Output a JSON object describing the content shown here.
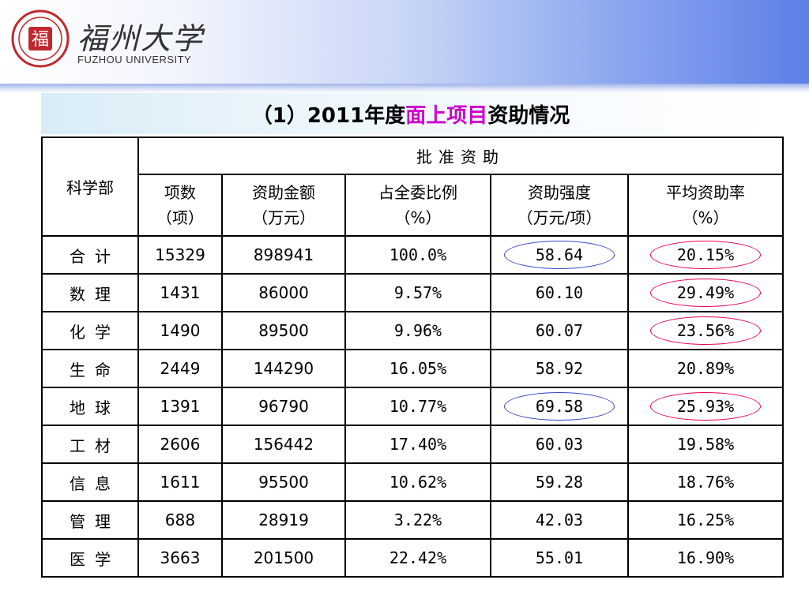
{
  "header": {
    "seal_char": "福",
    "logo_cn": "福州大学",
    "logo_en": "FUZHOU UNIVERSITY"
  },
  "title": {
    "prefix": "（1）2011年度",
    "highlight": "面上项目",
    "suffix": "资助情况"
  },
  "table": {
    "dept_header": "科学部",
    "group_header": "批准资助",
    "columns": [
      "项数（项）",
      "资助金额（万元）",
      "占全委比例（%）",
      "资助强度（万元/项）",
      "平均资助率（%）"
    ],
    "columns_line1": [
      "项数",
      "资助金额",
      "占全委比例",
      "资助强度",
      "平均资助率"
    ],
    "columns_line2": [
      "（项）",
      "（万元）",
      "（%）",
      "（万元/项）",
      "（%）"
    ],
    "rows": [
      {
        "dept": "合计",
        "count": "15329",
        "amount": "898941",
        "ratio": "100.0%",
        "intensity": "58.64",
        "rate": "20.15%"
      },
      {
        "dept": "数理",
        "count": "1431",
        "amount": "86000",
        "ratio": "9.57%",
        "intensity": "60.10",
        "rate": "29.49%"
      },
      {
        "dept": "化学",
        "count": "1490",
        "amount": "89500",
        "ratio": "9.96%",
        "intensity": "60.07",
        "rate": "23.56%"
      },
      {
        "dept": "生命",
        "count": "2449",
        "amount": "144290",
        "ratio": "16.05%",
        "intensity": "58.92",
        "rate": "20.89%"
      },
      {
        "dept": "地球",
        "count": "1391",
        "amount": "96790",
        "ratio": "10.77%",
        "intensity": "69.58",
        "rate": "25.93%"
      },
      {
        "dept": "工材",
        "count": "2606",
        "amount": "156442",
        "ratio": "17.40%",
        "intensity": "60.03",
        "rate": "19.58%"
      },
      {
        "dept": "信息",
        "count": "1611",
        "amount": "95500",
        "ratio": "10.62%",
        "intensity": "59.28",
        "rate": "18.76%"
      },
      {
        "dept": "管理",
        "count": "688",
        "amount": "28919",
        "ratio": "3.22%",
        "intensity": "42.03",
        "rate": "16.25%"
      },
      {
        "dept": "医学",
        "count": "3663",
        "amount": "201500",
        "ratio": "22.42%",
        "intensity": "55.01",
        "rate": "16.90%"
      }
    ]
  },
  "colors": {
    "highlight_magenta": "#cc00cc",
    "highlight_red": "#e8005a",
    "ring_blue": "#3344cc"
  }
}
